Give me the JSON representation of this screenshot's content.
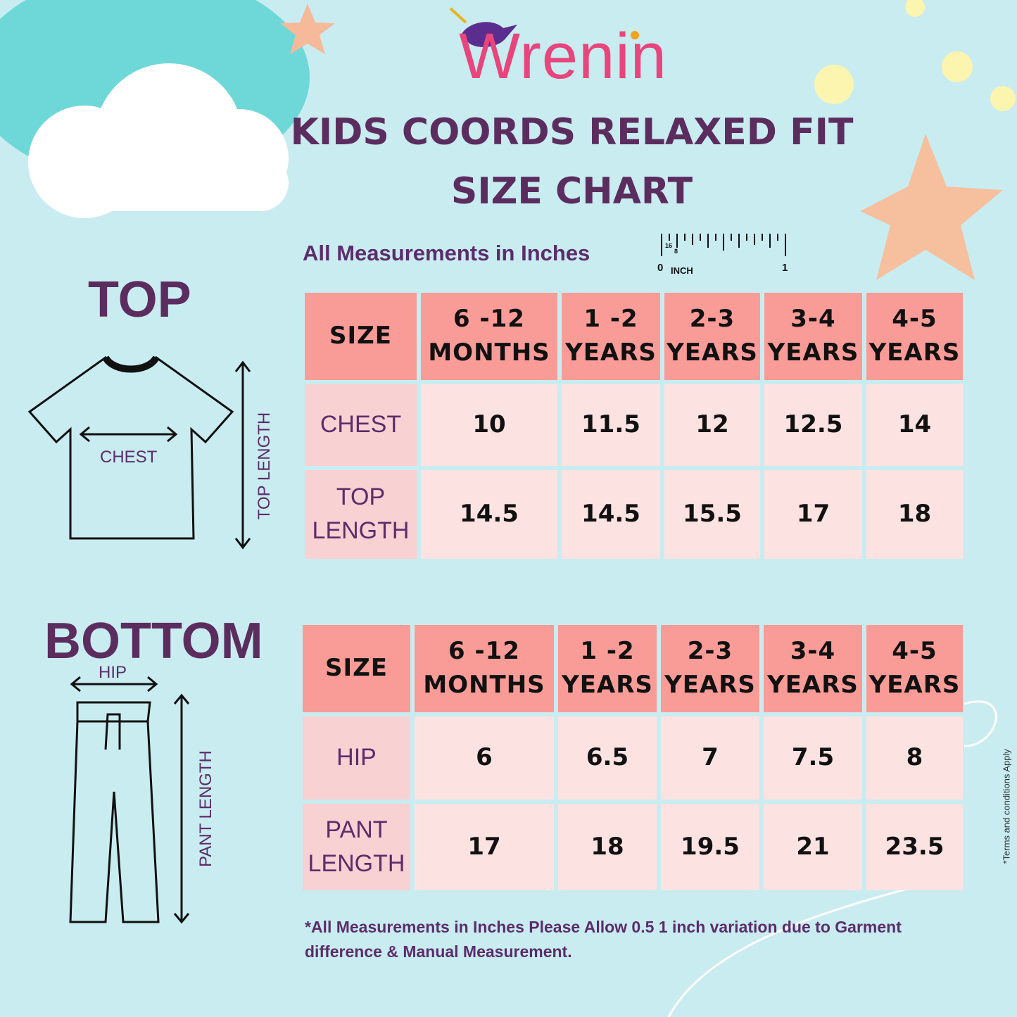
{
  "brand": "Wrenin",
  "title": [
    "KIDS COORDS RELAXED FIT",
    "SIZE CHART"
  ],
  "subtitle": "All Measurements in Inches",
  "ruler": {
    "start": "0",
    "unit": "INCH",
    "end": "1",
    "marks": [
      "16",
      "8"
    ]
  },
  "top": {
    "heading": "TOP",
    "diagram_labels": [
      "CHEST",
      "TOP LENGTH"
    ],
    "table": {
      "header": [
        "SIZE",
        "6 -12\nMONTHS",
        "1 -2\nYEARS",
        "2-3\nYEARS",
        "3-4\nYEARS",
        "4-5\nYEARS"
      ],
      "rows": [
        [
          "CHEST",
          10,
          11.5,
          12,
          12.5,
          14
        ],
        [
          "TOP LENGTH",
          14.5,
          14.5,
          15.5,
          17,
          18
        ]
      ]
    }
  },
  "bottom": {
    "heading": "BOTTOM",
    "diagram_labels": [
      "HIP",
      "PANT LENGTH"
    ],
    "table": {
      "header": [
        "SIZE",
        "6 -12\nMONTHS",
        "1 -2\nYEARS",
        "2-3\nYEARS",
        "3-4\nYEARS",
        "4-5\nYEARS"
      ],
      "rows": [
        [
          "HIP",
          6,
          6.5,
          7,
          7.5,
          8
        ],
        [
          "PANT LENGTH",
          17,
          18,
          19.5,
          21,
          23.5
        ]
      ]
    }
  },
  "note": "*All Measurements in Inches Please Allow 0.5  1 inch variation due to Garment difference & Manual Measurement.",
  "terms": "*Terms and conditions Apply"
}
